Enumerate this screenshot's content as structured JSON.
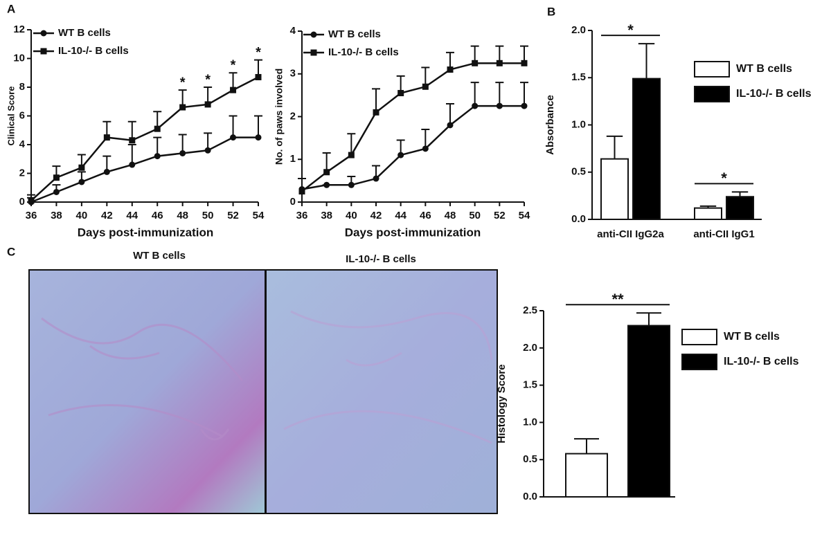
{
  "panel_labels": [
    "A",
    "B",
    "C"
  ],
  "images": [
    {
      "caption": "WT B cells"
    },
    {
      "caption": "IL-10-/- B cells"
    }
  ],
  "chart_data": [
    {
      "type": "line",
      "x_label": "Days post-immunization",
      "y_label": "Clinical Score",
      "x": [
        36,
        38,
        40,
        42,
        44,
        46,
        48,
        50,
        52,
        54
      ],
      "xlim": [
        36,
        54
      ],
      "xticks": [
        36,
        38,
        40,
        42,
        44,
        46,
        48,
        50,
        52,
        54
      ],
      "ylim": [
        0,
        12
      ],
      "yticks": [
        0,
        2,
        4,
        6,
        8,
        10,
        12
      ],
      "series": [
        {
          "name": "WT B cells",
          "color": "#111111",
          "marker": "circle",
          "values": [
            0,
            0.7,
            1.4,
            2.1,
            2.6,
            3.2,
            3.4,
            3.6,
            4.5,
            4.5
          ],
          "errors": [
            0.3,
            0.5,
            0.7,
            1.1,
            1.4,
            1.3,
            1.3,
            1.2,
            1.5,
            1.5
          ]
        },
        {
          "name": "IL-10-/- B cells",
          "color": "#111111",
          "marker": "square",
          "values": [
            0.1,
            1.7,
            2.4,
            4.5,
            4.3,
            5.1,
            6.6,
            6.8,
            7.8,
            8.7
          ],
          "errors": [
            0.4,
            0.8,
            0.9,
            1.1,
            1.3,
            1.2,
            1.2,
            1.2,
            1.2,
            1.2
          ]
        }
      ],
      "annotations": [
        {
          "x": 48,
          "text": "*"
        },
        {
          "x": 50,
          "text": "*"
        },
        {
          "x": 52,
          "text": "*"
        },
        {
          "x": 54,
          "text": "*"
        }
      ]
    },
    {
      "type": "line",
      "x_label": "Days post-immunization",
      "y_label": "No. of paws involved",
      "x": [
        36,
        38,
        40,
        42,
        44,
        46,
        48,
        50,
        52,
        54
      ],
      "xlim": [
        36,
        54
      ],
      "xticks": [
        36,
        38,
        40,
        42,
        44,
        46,
        48,
        50,
        52,
        54
      ],
      "ylim": [
        0,
        4
      ],
      "yticks": [
        0,
        1,
        2,
        3,
        4
      ],
      "series": [
        {
          "name": "WT B cells",
          "color": "#111111",
          "marker": "circle",
          "values": [
            0.3,
            0.4,
            0.4,
            0.55,
            1.1,
            1.25,
            1.8,
            2.25,
            2.25,
            2.25
          ],
          "errors": [
            0.25,
            0,
            0.2,
            0.3,
            0.35,
            0.45,
            0.5,
            0.55,
            0.55,
            0.55
          ]
        },
        {
          "name": "IL-10-/- B cells",
          "color": "#111111",
          "marker": "square",
          "values": [
            0.25,
            0.7,
            1.1,
            2.1,
            2.55,
            2.7,
            3.1,
            3.25,
            3.25,
            3.25
          ],
          "errors": [
            0.3,
            0.45,
            0.5,
            0.55,
            0.4,
            0.45,
            0.4,
            0.4,
            0.4,
            0.4
          ]
        }
      ]
    },
    {
      "type": "bar",
      "y_label": "Absorbance",
      "categories": [
        "anti-CII IgG2a",
        "anti-CII IgG1"
      ],
      "ylim": [
        0,
        2
      ],
      "yticks": [
        {
          "value": 0,
          "label": "0.0"
        },
        0.5,
        {
          "value": 1,
          "label": "1.0"
        },
        1.5,
        {
          "value": 2,
          "label": "2.0"
        }
      ],
      "series": [
        {
          "name": "WT B cells",
          "color": "#ffffff",
          "values": [
            0.64,
            0.12
          ],
          "errors": [
            0.24,
            0.02
          ]
        },
        {
          "name": "IL-10-/- B cells",
          "color": "#000000",
          "values": [
            1.49,
            0.24
          ],
          "errors": [
            0.37,
            0.05
          ]
        }
      ],
      "annotations": [
        {
          "category": 0,
          "text": "*"
        },
        {
          "category": 1,
          "text": "*"
        }
      ]
    },
    {
      "type": "bar",
      "y_label": "Histology Score",
      "ylim": [
        0,
        2.5
      ],
      "yticks": [
        {
          "value": 0,
          "label": "0.0"
        },
        0.5,
        {
          "value": 1,
          "label": "1.0"
        },
        1.5,
        {
          "value": 2,
          "label": "2.0"
        },
        2.5
      ],
      "series": [
        {
          "name": "WT B cells",
          "color": "#ffffff",
          "values": [
            0.58
          ],
          "errors": [
            0.2
          ]
        },
        {
          "name": "IL-10-/- B cells",
          "color": "#000000",
          "values": [
            2.3
          ],
          "errors": [
            0.17
          ]
        }
      ],
      "annotations": [
        {
          "category": 0,
          "text": "**"
        }
      ]
    }
  ]
}
